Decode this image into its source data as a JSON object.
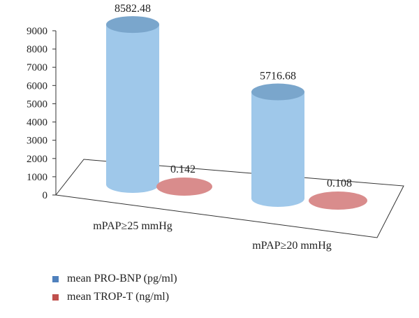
{
  "chart_data": {
    "type": "bar",
    "style": "3d-cylinder",
    "categories": [
      "mPAP≥25 mmHg",
      "mPAP≥20 mmHg"
    ],
    "series": [
      {
        "name": "mean PRO-BNP (pg/ml)",
        "values": [
          8582.48,
          5716.68
        ],
        "labels": [
          "8582.48",
          "5716.68"
        ],
        "color": "#9fc8ea"
      },
      {
        "name": "mean TROP-T (ng/ml)",
        "values": [
          0.142,
          0.108
        ],
        "labels": [
          "0.142",
          "0.108"
        ],
        "color": "#d98c8c"
      }
    ],
    "ylim": [
      0,
      9000
    ],
    "yticks": [
      "0",
      "1000",
      "2000",
      "3000",
      "4000",
      "5000",
      "6000",
      "7000",
      "8000",
      "9000"
    ],
    "legend_position": "bottom-left",
    "grid": false
  }
}
